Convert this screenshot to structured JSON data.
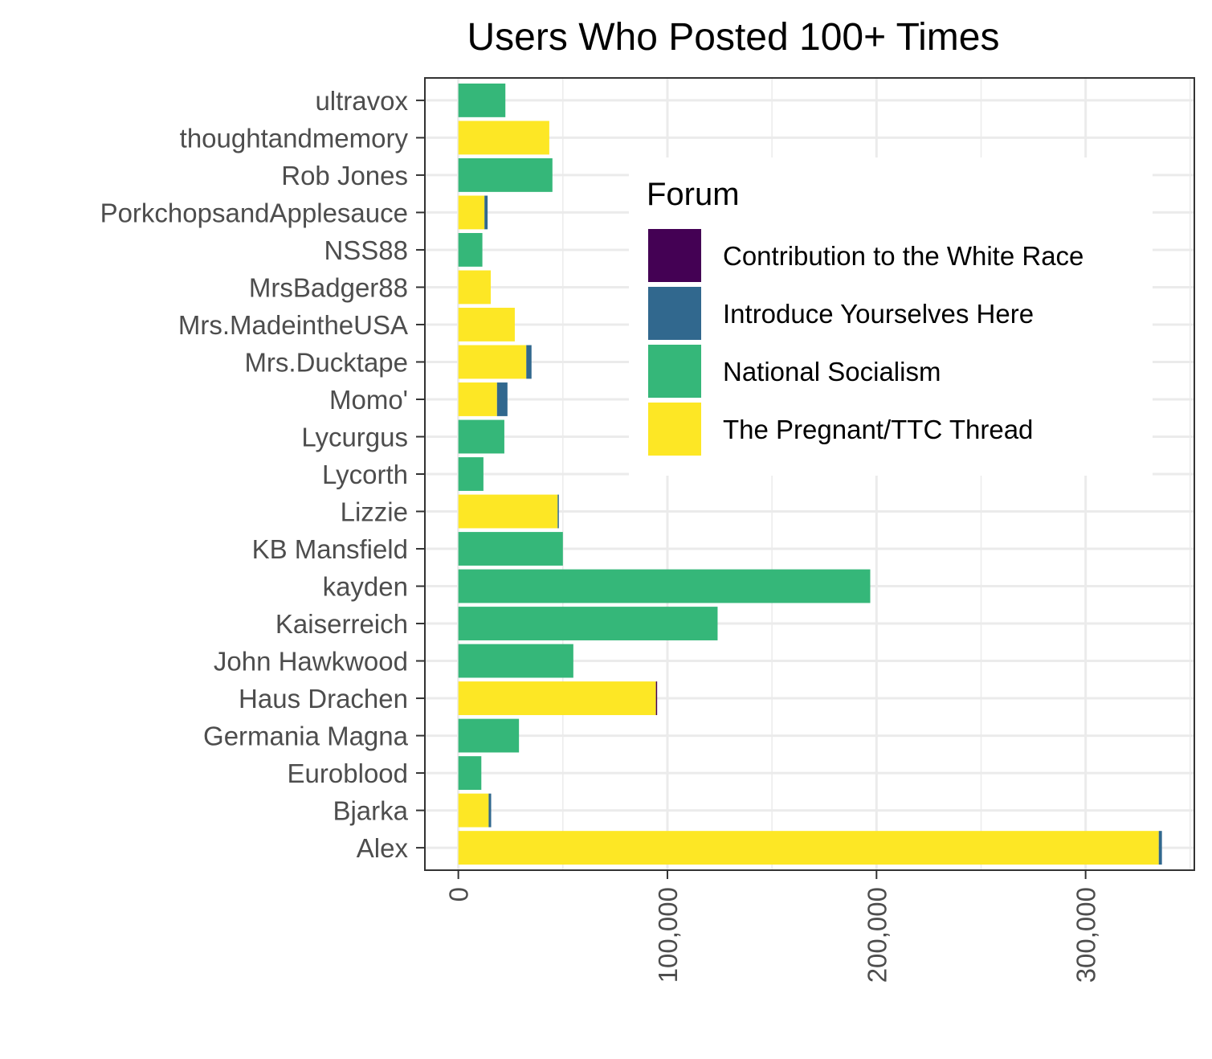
{
  "chart_data": {
    "type": "bar",
    "orientation": "horizontal",
    "stacked": true,
    "title": "Users Who Posted 100+ Times",
    "xlabel": "",
    "ylabel": "",
    "xlim": [
      -16000,
      352000
    ],
    "x_ticks": [
      0,
      100000,
      200000,
      300000
    ],
    "x_tick_labels": [
      "0",
      "100,000",
      "200,000",
      "300,000"
    ],
    "grid": true,
    "legend": {
      "title": "Forum",
      "placement": "inside top-right"
    },
    "categories": [
      "Alex",
      "Bjarka",
      "Euroblood",
      "Germania Magna",
      "Haus Drachen",
      "John Hawkwood",
      "Kaiserreich",
      "kayden",
      "KB Mansfield",
      "Lizzie ",
      "Lycorth",
      "Lycurgus",
      "Momo'",
      "Mrs.Ducktape",
      "Mrs.MadeintheUSA",
      "MrsBadger88",
      "NSS88",
      "PorkchopsandApplesauce",
      "Rob Jones",
      "thoughtandmemory",
      "ultravox"
    ],
    "series": [
      {
        "name": "Contribution to the White Race",
        "color": "#440154",
        "values": [
          0,
          0,
          0,
          0,
          500,
          0,
          0,
          0,
          0,
          0,
          0,
          0,
          0,
          0,
          0,
          0,
          0,
          0,
          0,
          0,
          0
        ]
      },
      {
        "name": "Introduce Yourselves Here",
        "color": "#31688E",
        "values": [
          1500,
          1200,
          0,
          0,
          0,
          0,
          0,
          0,
          0,
          500,
          0,
          0,
          5000,
          2500,
          0,
          0,
          0,
          1500,
          0,
          0,
          0
        ]
      },
      {
        "name": "National Socialism",
        "color": "#35B779",
        "values": [
          0,
          0,
          11000,
          29000,
          0,
          55000,
          124000,
          197000,
          50000,
          0,
          12000,
          22000,
          0,
          0,
          0,
          0,
          11500,
          0,
          45000,
          0,
          22500
        ]
      },
      {
        "name": "The Pregnant/TTC Thread",
        "color": "#FDE725",
        "values": [
          335000,
          14500,
          0,
          0,
          94500,
          0,
          0,
          0,
          0,
          47500,
          0,
          0,
          18500,
          32500,
          27000,
          15500,
          0,
          12500,
          0,
          43500,
          0
        ]
      }
    ]
  }
}
